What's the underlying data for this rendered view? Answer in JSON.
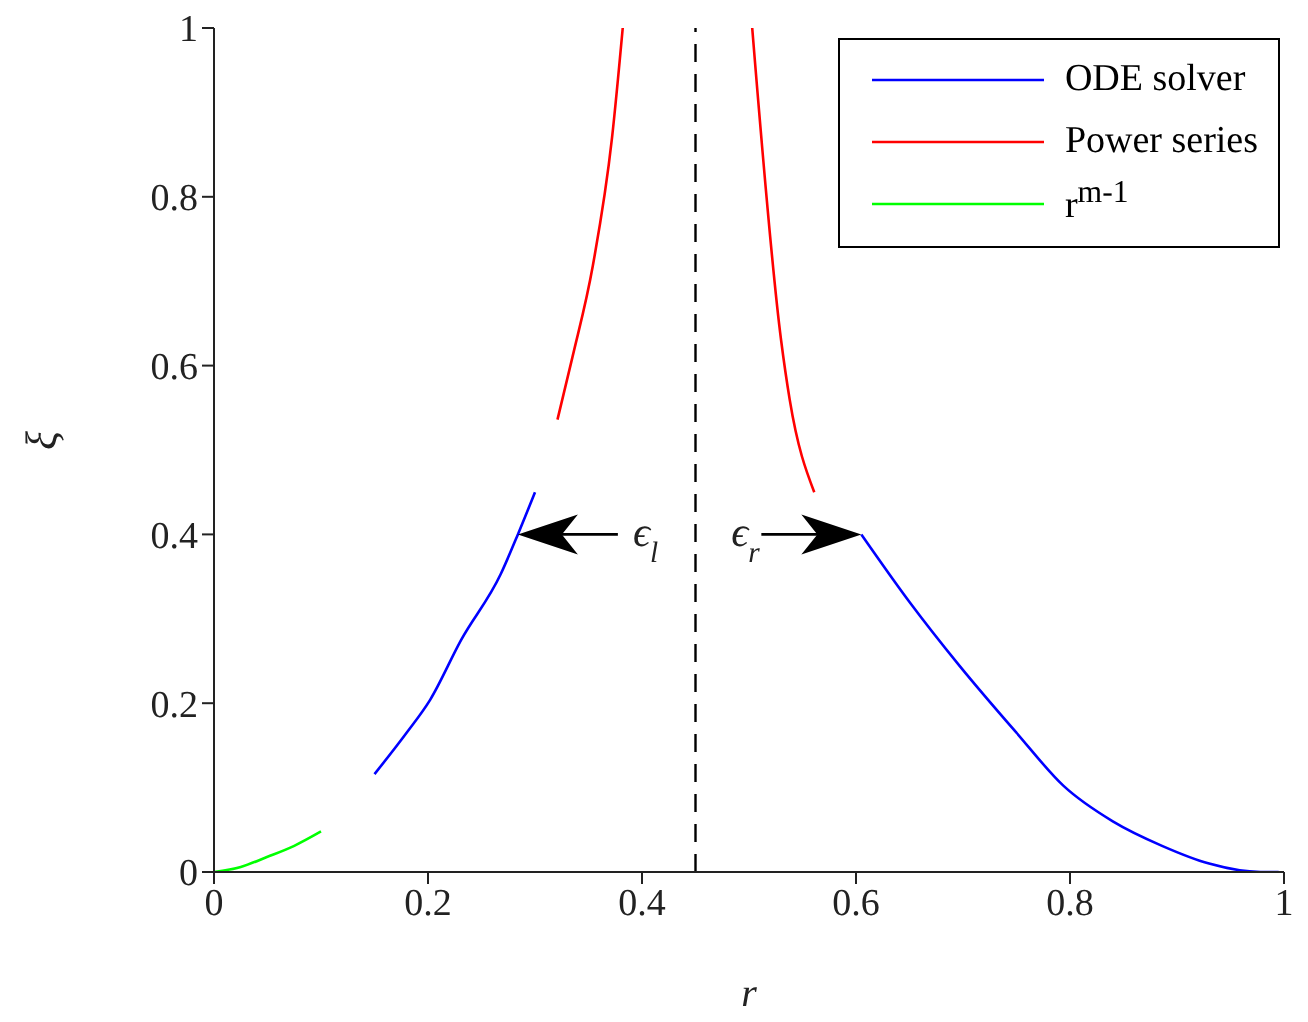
{
  "chart_data": {
    "type": "line",
    "xlabel": "r",
    "ylabel": "ξ",
    "xlim": [
      0,
      1
    ],
    "ylim": [
      0,
      1
    ],
    "xticks": [
      0,
      0.2,
      0.4,
      0.6,
      0.8,
      1
    ],
    "yticks": [
      0,
      0.2,
      0.4,
      0.6,
      0.8,
      1
    ],
    "grid": false,
    "legend": "top right",
    "line_style": "solid",
    "marker": "none",
    "series": [
      {
        "name": "ODE solver",
        "color": "#0000ff",
        "x": [
          0.15,
          0.18,
          0.202,
          0.231,
          0.268,
          0.284,
          0.3,
          0.45,
          0.605,
          0.65,
          0.697,
          0.75,
          0.794,
          0.84,
          0.886,
          0.93,
          0.978,
          0.995
        ],
        "values": [
          0.116,
          0.165,
          0.204,
          0.275,
          0.353,
          0.4,
          0.45,
          null,
          0.4,
          0.32,
          0.244,
          0.165,
          0.102,
          0.06,
          0.031,
          0.01,
          0.0,
          0.0
        ]
      },
      {
        "name": "Power series",
        "color": "#ff0000",
        "x": [
          0.321,
          0.335,
          0.354,
          0.372,
          0.382,
          0.45,
          0.503,
          0.53,
          0.538,
          0.561
        ],
        "values": [
          0.536,
          0.61,
          0.718,
          0.87,
          1,
          null,
          1,
          0.63,
          0.56,
          0.45
        ]
      },
      {
        "name": "r$^{m-1}$",
        "color": "#00ff00",
        "x": [
          0,
          0.025,
          0.05,
          0.075,
          0.1
        ],
        "values": [
          0,
          0.006,
          0.018,
          0.031,
          0.048
        ]
      }
    ],
    "ref_lines": [
      {
        "axis": "x",
        "value": 0.45,
        "color": "#000000",
        "line_style": "dashed"
      }
    ],
    "annotations": [
      {
        "text": "ϵ$_{l}$",
        "x": 0.284,
        "y": 0.4
      },
      {
        "text": "ϵ$_{r}$",
        "x": 0.605,
        "y": 0.4
      }
    ]
  }
}
